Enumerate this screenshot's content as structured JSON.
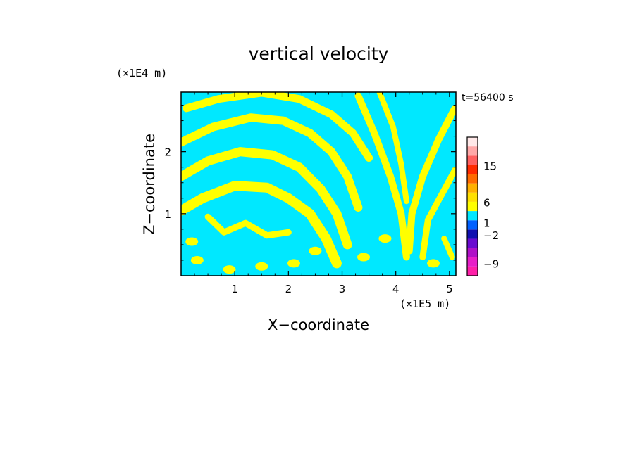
{
  "chart_data": {
    "type": "heatmap",
    "title": "vertical velocity",
    "xlabel": "X−coordinate",
    "ylabel": "Z−coordinate",
    "x_scale_label": "(×1E5 m)",
    "y_scale_label": "(×1E4 m)",
    "time_label": "t=56400 s",
    "xlim": [
      0,
      5.12
    ],
    "ylim": [
      0,
      2.96
    ],
    "x_ticks": [
      1,
      2,
      3,
      4,
      5
    ],
    "y_ticks": [
      1,
      2
    ],
    "field_colors": {
      "positive": "#ffff00",
      "negative": "#00e8ff"
    },
    "colorbar": {
      "labels": [
        {
          "text": "15",
          "value": 15
        },
        {
          "text": "6",
          "value": 6
        },
        {
          "text": "1",
          "value": 1
        },
        {
          "text": "−2",
          "value": -2
        },
        {
          "text": "−9",
          "value": -9
        }
      ],
      "levels": [
        {
          "color": "#ff1fa8"
        },
        {
          "color": "#e81ec8"
        },
        {
          "color": "#b010c8"
        },
        {
          "color": "#6a0ad0"
        },
        {
          "color": "#1010b0"
        },
        {
          "color": "#0060ff"
        },
        {
          "color": "#00e8ff"
        },
        {
          "color": "#ffff00"
        },
        {
          "color": "#ffe000"
        },
        {
          "color": "#ffb000"
        },
        {
          "color": "#ff6a00"
        },
        {
          "color": "#ff2a00"
        },
        {
          "color": "#ff6060"
        },
        {
          "color": "#ffa8a8"
        },
        {
          "color": "#ffe8e8"
        }
      ]
    }
  }
}
